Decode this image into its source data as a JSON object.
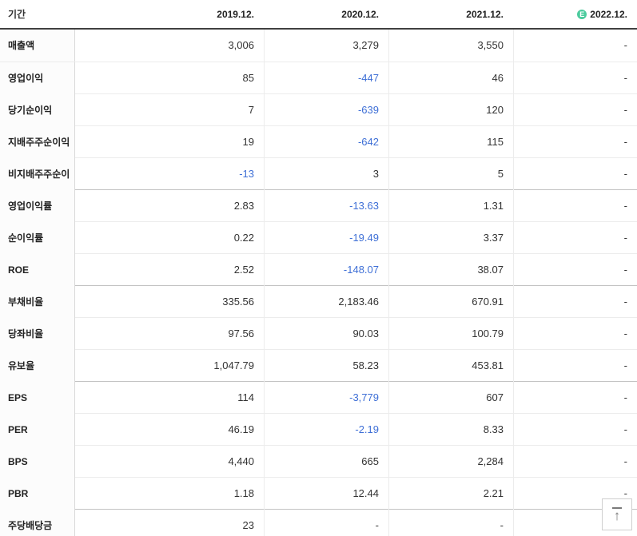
{
  "table": {
    "header": {
      "period_label": "기간",
      "columns": [
        "2019.12.",
        "2020.12.",
        "2021.12.",
        "2022.12."
      ],
      "estimate_badge": "E",
      "estimate_column_index": 3
    },
    "groups": [
      {
        "rows": [
          {
            "label": "매출액",
            "values": [
              "3,006",
              "3,279",
              "3,550",
              "-"
            ]
          },
          {
            "label": "영업이익",
            "values": [
              "85",
              "-447",
              "46",
              "-"
            ]
          },
          {
            "label": "당기순이익",
            "values": [
              "7",
              "-639",
              "120",
              "-"
            ]
          },
          {
            "label": "지배주주순이익",
            "values": [
              "19",
              "-642",
              "115",
              "-"
            ]
          },
          {
            "label": "비지배주주순이익",
            "values": [
              "-13",
              "3",
              "5",
              "-"
            ]
          }
        ]
      },
      {
        "rows": [
          {
            "label": "영업이익률",
            "values": [
              "2.83",
              "-13.63",
              "1.31",
              "-"
            ]
          },
          {
            "label": "순이익률",
            "values": [
              "0.22",
              "-19.49",
              "3.37",
              "-"
            ]
          },
          {
            "label": "ROE",
            "values": [
              "2.52",
              "-148.07",
              "38.07",
              "-"
            ]
          }
        ]
      },
      {
        "rows": [
          {
            "label": "부채비율",
            "values": [
              "335.56",
              "2,183.46",
              "670.91",
              "-"
            ]
          },
          {
            "label": "당좌비율",
            "values": [
              "97.56",
              "90.03",
              "100.79",
              "-"
            ]
          },
          {
            "label": "유보율",
            "values": [
              "1,047.79",
              "58.23",
              "453.81",
              "-"
            ]
          }
        ]
      },
      {
        "rows": [
          {
            "label": "EPS",
            "values": [
              "114",
              "-3,779",
              "607",
              "-"
            ]
          },
          {
            "label": "PER",
            "values": [
              "46.19",
              "-2.19",
              "8.33",
              "-"
            ]
          },
          {
            "label": "BPS",
            "values": [
              "4,440",
              "665",
              "2,284",
              "-"
            ]
          },
          {
            "label": "PBR",
            "values": [
              "1.18",
              "12.44",
              "2.21",
              "-"
            ]
          }
        ]
      },
      {
        "rows": [
          {
            "label": "주당배당금",
            "values": [
              "23",
              "-",
              "-",
              "-"
            ]
          }
        ]
      }
    ]
  },
  "colors": {
    "negative_value": "#3e6fd6",
    "estimate_badge": "#4ccb9e"
  },
  "scroll_top_button": {
    "arrow_icon": "↑"
  }
}
